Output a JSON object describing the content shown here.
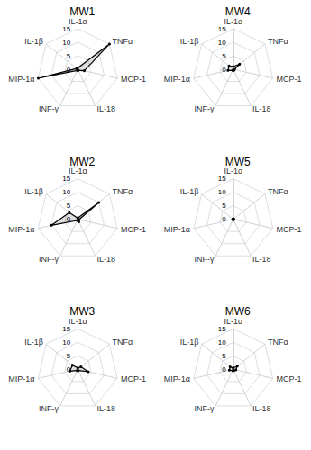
{
  "chart_data": [
    {
      "type": "radar",
      "title": "MW1",
      "categories": [
        "IL-1α",
        "IL-1β",
        "MIP-1α",
        "INF-γ",
        "IL-18",
        "MCP-1",
        "TNFα"
      ],
      "values": [
        0.5,
        0.5,
        15.0,
        0.5,
        0.5,
        2.5,
        15.0
      ],
      "color": "#000000",
      "ylim": [
        0,
        15
      ],
      "yticks": [
        0,
        5,
        10,
        15
      ],
      "grid": true
    },
    {
      "type": "radar",
      "title": "MW4",
      "categories": [
        "IL-1α",
        "IL-1β",
        "MIP-1α",
        "INF-γ",
        "IL-18",
        "MCP-1",
        "TNFα"
      ],
      "values": [
        1.0,
        2.0,
        2.0,
        0.5,
        0.5,
        0.5,
        3.0
      ],
      "color": "#000000",
      "ylim": [
        0,
        15
      ],
      "yticks": [
        0,
        5,
        10,
        15
      ],
      "grid": true
    },
    {
      "type": "radar",
      "title": "MW2",
      "categories": [
        "IL-1α",
        "IL-1β",
        "MIP-1α",
        "INF-γ",
        "IL-18",
        "MCP-1",
        "TNFα"
      ],
      "values": [
        0.5,
        4.0,
        10.0,
        0.5,
        1.0,
        0.5,
        10.0
      ],
      "color": "#000000",
      "ylim": [
        0,
        15
      ],
      "yticks": [
        0,
        5,
        10,
        15
      ],
      "grid": true
    },
    {
      "type": "radar",
      "title": "MW5",
      "categories": [
        "IL-1α",
        "IL-1β",
        "MIP-1α",
        "INF-γ",
        "IL-18",
        "MCP-1",
        "TNFα"
      ],
      "values": [
        0.2,
        0.2,
        0.2,
        0.2,
        0.2,
        0.2,
        0.2
      ],
      "color": "#000000",
      "ylim": [
        0,
        15
      ],
      "yticks": [
        0,
        5,
        10,
        15
      ],
      "grid": true
    },
    {
      "type": "radar",
      "title": "MW3",
      "categories": [
        "IL-1α",
        "IL-1β",
        "MIP-1α",
        "INF-γ",
        "IL-18",
        "MCP-1",
        "TNFα"
      ],
      "values": [
        0.5,
        2.5,
        3.0,
        0.5,
        0.5,
        4.0,
        1.5
      ],
      "color": "#000000",
      "ylim": [
        0,
        15
      ],
      "yticks": [
        0,
        5,
        10,
        15
      ],
      "grid": true
    },
    {
      "type": "radar",
      "title": "MW6",
      "categories": [
        "IL-1α",
        "IL-1β",
        "MIP-1α",
        "INF-γ",
        "IL-18",
        "MCP-1",
        "TNFα"
      ],
      "values": [
        0.5,
        1.5,
        1.5,
        0.5,
        0.5,
        1.0,
        2.0
      ],
      "color": "#000000",
      "ylim": [
        0,
        15
      ],
      "yticks": [
        0,
        5,
        10,
        15
      ],
      "grid": true
    }
  ]
}
